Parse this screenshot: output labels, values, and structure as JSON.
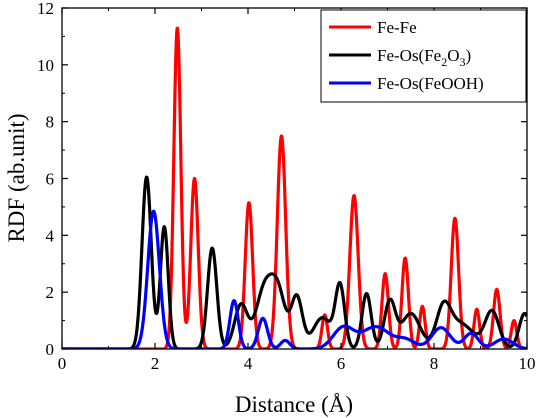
{
  "chart_data": {
    "type": "line",
    "xlabel": "Distance (Å)",
    "ylabel": "RDF (ab.unit)",
    "xlim": [
      0,
      10
    ],
    "ylim": [
      0,
      12
    ],
    "x_ticks": [
      0,
      2,
      4,
      6,
      8,
      10
    ],
    "y_ticks": [
      0,
      2,
      4,
      6,
      8,
      10,
      12
    ],
    "grid": false,
    "legend_position": "top-right",
    "series": [
      {
        "name": "Fe-Fe",
        "name_parts": {
          "base": "Fe-Fe"
        },
        "color": "#ff0000",
        "peaks": [
          {
            "x": 2.48,
            "height": 11.3,
            "width": 0.075
          },
          {
            "x": 2.85,
            "height": 6.0,
            "width": 0.08
          },
          {
            "x": 4.02,
            "height": 5.15,
            "width": 0.08
          },
          {
            "x": 4.72,
            "height": 7.5,
            "width": 0.09
          },
          {
            "x": 5.65,
            "height": 1.2,
            "width": 0.06
          },
          {
            "x": 6.28,
            "height": 5.4,
            "width": 0.09
          },
          {
            "x": 6.95,
            "height": 2.65,
            "width": 0.07
          },
          {
            "x": 7.38,
            "height": 3.2,
            "width": 0.07
          },
          {
            "x": 7.75,
            "height": 1.5,
            "width": 0.06
          },
          {
            "x": 8.45,
            "height": 4.6,
            "width": 0.08
          },
          {
            "x": 8.92,
            "height": 1.4,
            "width": 0.06
          },
          {
            "x": 9.35,
            "height": 2.1,
            "width": 0.07
          },
          {
            "x": 9.72,
            "height": 1.0,
            "width": 0.06
          }
        ]
      },
      {
        "name": "Fe-Os(Fe2O3)",
        "name_parts": {
          "base": "Fe-Os(Fe",
          "sub1": "2",
          "mid": "O",
          "sub2": "3",
          "end": ")"
        },
        "color": "#000000",
        "peaks": [
          {
            "x": 1.82,
            "height": 6.05,
            "width": 0.1
          },
          {
            "x": 2.2,
            "height": 4.3,
            "width": 0.085
          },
          {
            "x": 3.23,
            "height": 3.55,
            "width": 0.1
          },
          {
            "x": 3.85,
            "height": 1.55,
            "width": 0.14
          },
          {
            "x": 4.35,
            "height": 2.05,
            "width": 0.18
          },
          {
            "x": 4.65,
            "height": 1.85,
            "width": 0.16
          },
          {
            "x": 5.05,
            "height": 1.8,
            "width": 0.12
          },
          {
            "x": 5.6,
            "height": 1.1,
            "width": 0.2
          },
          {
            "x": 5.98,
            "height": 2.15,
            "width": 0.1
          },
          {
            "x": 6.55,
            "height": 1.95,
            "width": 0.1
          },
          {
            "x": 7.05,
            "height": 1.65,
            "width": 0.12
          },
          {
            "x": 7.5,
            "height": 1.25,
            "width": 0.2
          },
          {
            "x": 8.2,
            "height": 1.2,
            "width": 0.15
          },
          {
            "x": 8.55,
            "height": 0.9,
            "width": 0.3
          },
          {
            "x": 9.25,
            "height": 1.3,
            "width": 0.15
          },
          {
            "x": 9.95,
            "height": 1.25,
            "width": 0.12
          }
        ]
      },
      {
        "name": "Fe-Os(FeOOH)",
        "name_parts": {
          "base": "Fe-Os(FeOOH)"
        },
        "color": "#0000ff",
        "peaks": [
          {
            "x": 1.97,
            "height": 4.85,
            "width": 0.125
          },
          {
            "x": 3.7,
            "height": 1.7,
            "width": 0.09
          },
          {
            "x": 4.32,
            "height": 1.08,
            "width": 0.1
          },
          {
            "x": 4.8,
            "height": 0.3,
            "width": 0.1
          },
          {
            "x": 6.05,
            "height": 0.75,
            "width": 0.22
          },
          {
            "x": 6.75,
            "height": 0.78,
            "width": 0.3
          },
          {
            "x": 7.4,
            "height": 0.3,
            "width": 0.2
          },
          {
            "x": 8.15,
            "height": 0.75,
            "width": 0.2
          },
          {
            "x": 8.8,
            "height": 0.55,
            "width": 0.15
          },
          {
            "x": 9.5,
            "height": 0.35,
            "width": 0.2
          }
        ]
      }
    ]
  }
}
